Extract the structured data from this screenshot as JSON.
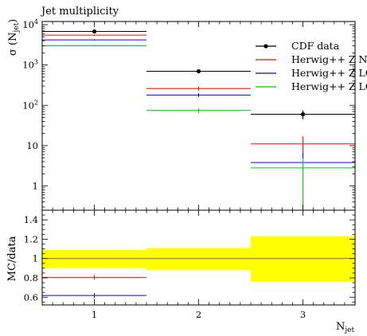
{
  "chart_data": {
    "type": "line",
    "title": "Jet multiplicity",
    "xlabel_main": "N",
    "xlabel_sub": "jet",
    "ylabel_main": "σ (N",
    "ylabel_sub": "jet",
    "ylabel_close": ")",
    "ratio_ylabel": "MC/data",
    "x_ticks": [
      "1",
      "2",
      "3"
    ],
    "xlim": [
      0.5,
      3.5
    ],
    "ylim_top": [
      0.25,
      12000
    ],
    "ylim_ratio": [
      0.52,
      1.5
    ],
    "y_ticks_top": [
      {
        "value": 10000,
        "base": "10",
        "exp": "4"
      },
      {
        "value": 1000,
        "base": "10",
        "exp": "3"
      },
      {
        "value": 100,
        "base": "10",
        "exp": "2"
      },
      {
        "value": 10,
        "base": "10",
        "exp": ""
      },
      {
        "value": 1,
        "base": "1",
        "exp": ""
      }
    ],
    "y_ticks_ratio": [
      "0.6",
      "0.8",
      "1",
      "1.2",
      "1.4"
    ],
    "bins": [
      [
        0.5,
        1.5
      ],
      [
        1.5,
        2.5
      ],
      [
        2.5,
        3.5
      ]
    ],
    "series": [
      {
        "name": "CDF data",
        "color": "#000000",
        "marker": "dot",
        "values": [
          6800,
          700,
          60
        ],
        "err": [
          [
            600,
            600
          ],
          [
            60,
            60
          ],
          [
            15,
            15
          ]
        ]
      },
      {
        "name": "Herwig++ Z NLO",
        "color": "#ff0000",
        "marker": "none",
        "values": [
          5500,
          260,
          11
        ],
        "err": [
          [
            200,
            200
          ],
          [
            30,
            30
          ],
          [
            5,
            6
          ]
        ]
      },
      {
        "name": "Herwig++ Z LO",
        "color": "#0000ff",
        "marker": "none",
        "values": [
          4200,
          180,
          3.8
        ],
        "err": [
          [
            150,
            150
          ],
          [
            20,
            20
          ],
          [
            2,
            3
          ]
        ]
      },
      {
        "name": "Herwig++ Z LO",
        "color": "#00cc00",
        "marker": "none",
        "values": [
          3000,
          75,
          2.8
        ],
        "err": [
          [
            120,
            120
          ],
          [
            10,
            10
          ],
          [
            2.6,
            2
          ]
        ]
      }
    ],
    "ratio": {
      "band_low": [
        0.9,
        0.88,
        0.76
      ],
      "band_high": [
        1.09,
        1.11,
        1.23
      ],
      "band_color": "#ffff00",
      "series": [
        {
          "color": "#ff0000",
          "values": [
            0.805,
            null,
            null
          ]
        },
        {
          "color": "#0000ff",
          "values": [
            0.618,
            null,
            null
          ]
        }
      ]
    },
    "legend_position": "top-right",
    "grid": false
  }
}
